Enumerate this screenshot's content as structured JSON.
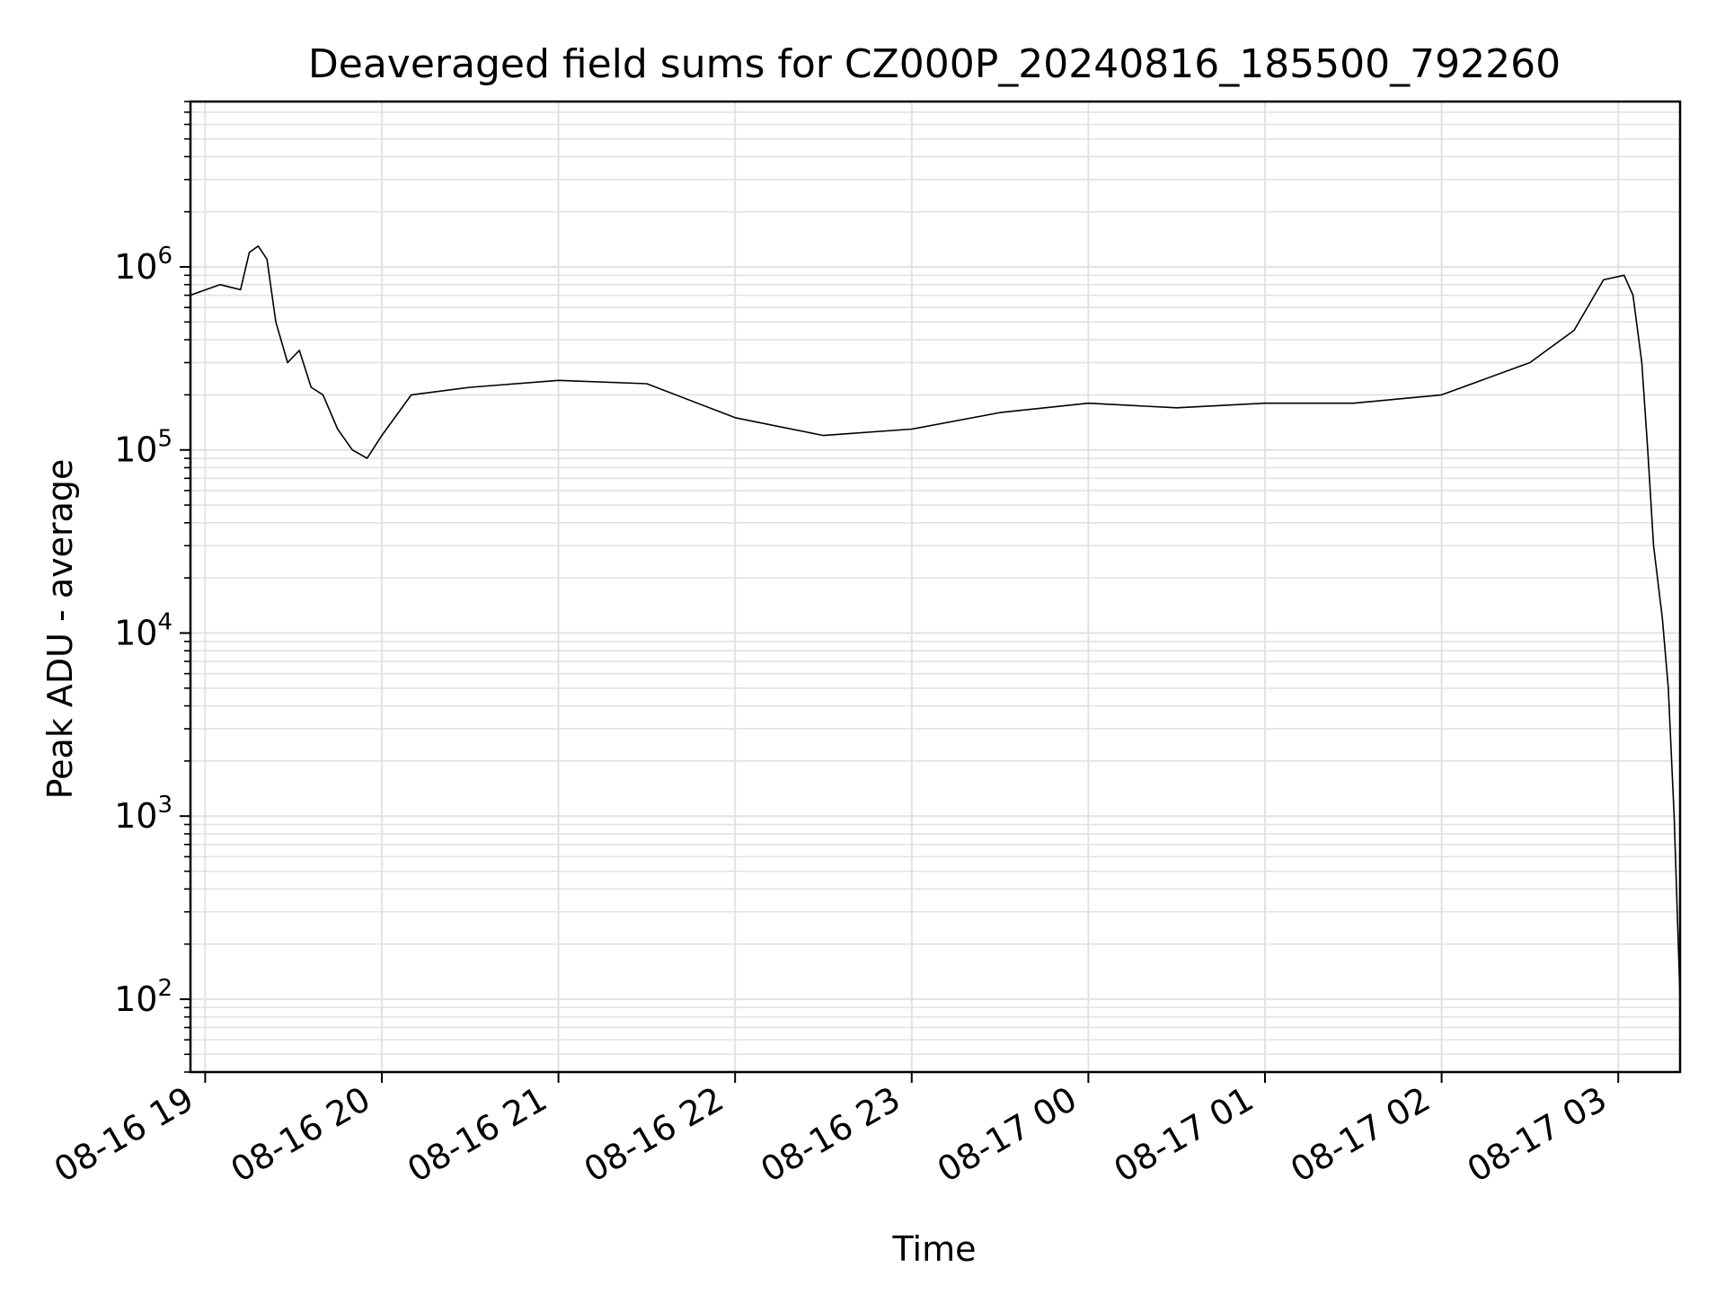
{
  "chart_data": {
    "type": "line",
    "title": "Deaveraged field sums for CZ000P_20240816_185500_792260",
    "xlabel": "Time",
    "ylabel": "Peak ADU - average",
    "yscale": "log",
    "xlim": [
      "2024-08-16T18:55",
      "2024-08-17T03:21"
    ],
    "ylim": [
      40,
      8000000
    ],
    "grid": true,
    "line_color": "#000000",
    "x_ticks": [
      {
        "value": "2024-08-16T19:00",
        "label": "08-16 19"
      },
      {
        "value": "2024-08-16T20:00",
        "label": "08-16 20"
      },
      {
        "value": "2024-08-16T21:00",
        "label": "08-16 21"
      },
      {
        "value": "2024-08-16T22:00",
        "label": "08-16 22"
      },
      {
        "value": "2024-08-16T23:00",
        "label": "08-16 23"
      },
      {
        "value": "2024-08-17T00:00",
        "label": "08-17 00"
      },
      {
        "value": "2024-08-17T01:00",
        "label": "08-17 01"
      },
      {
        "value": "2024-08-17T02:00",
        "label": "08-17 02"
      },
      {
        "value": "2024-08-17T03:00",
        "label": "08-17 03"
      }
    ],
    "y_ticks": [
      {
        "value": 100,
        "base": "10",
        "exp": "2"
      },
      {
        "value": 1000,
        "base": "10",
        "exp": "3"
      },
      {
        "value": 10000,
        "base": "10",
        "exp": "4"
      },
      {
        "value": 100000,
        "base": "10",
        "exp": "5"
      },
      {
        "value": 1000000,
        "base": "10",
        "exp": "6"
      }
    ],
    "series": [
      {
        "points": [
          [
            "2024-08-16T18:55",
            700000
          ],
          [
            "2024-08-16T19:05",
            800000
          ],
          [
            "2024-08-16T19:12",
            750000
          ],
          [
            "2024-08-16T19:15",
            1200000
          ],
          [
            "2024-08-16T19:18",
            1300000
          ],
          [
            "2024-08-16T19:21",
            1100000
          ],
          [
            "2024-08-16T19:24",
            500000
          ],
          [
            "2024-08-16T19:28",
            300000
          ],
          [
            "2024-08-16T19:32",
            350000
          ],
          [
            "2024-08-16T19:36",
            220000
          ],
          [
            "2024-08-16T19:40",
            200000
          ],
          [
            "2024-08-16T19:45",
            130000
          ],
          [
            "2024-08-16T19:50",
            100000
          ],
          [
            "2024-08-16T19:55",
            90000
          ],
          [
            "2024-08-16T20:00",
            120000
          ],
          [
            "2024-08-16T20:10",
            200000
          ],
          [
            "2024-08-16T20:30",
            220000
          ],
          [
            "2024-08-16T21:00",
            240000
          ],
          [
            "2024-08-16T21:30",
            230000
          ],
          [
            "2024-08-16T22:00",
            150000
          ],
          [
            "2024-08-16T22:30",
            120000
          ],
          [
            "2024-08-16T23:00",
            130000
          ],
          [
            "2024-08-16T23:30",
            160000
          ],
          [
            "2024-08-17T00:00",
            180000
          ],
          [
            "2024-08-17T00:30",
            170000
          ],
          [
            "2024-08-17T01:00",
            180000
          ],
          [
            "2024-08-17T01:30",
            180000
          ],
          [
            "2024-08-17T02:00",
            200000
          ],
          [
            "2024-08-17T02:30",
            300000
          ],
          [
            "2024-08-17T02:45",
            450000
          ],
          [
            "2024-08-17T02:55",
            850000
          ],
          [
            "2024-08-17T03:02",
            900000
          ],
          [
            "2024-08-17T03:05",
            700000
          ],
          [
            "2024-08-17T03:08",
            300000
          ],
          [
            "2024-08-17T03:10",
            100000
          ],
          [
            "2024-08-17T03:12",
            30000
          ],
          [
            "2024-08-17T03:15",
            12000
          ],
          [
            "2024-08-17T03:17",
            5000
          ],
          [
            "2024-08-17T03:19",
            1000
          ],
          [
            "2024-08-17T03:21",
            100
          ]
        ]
      }
    ]
  }
}
